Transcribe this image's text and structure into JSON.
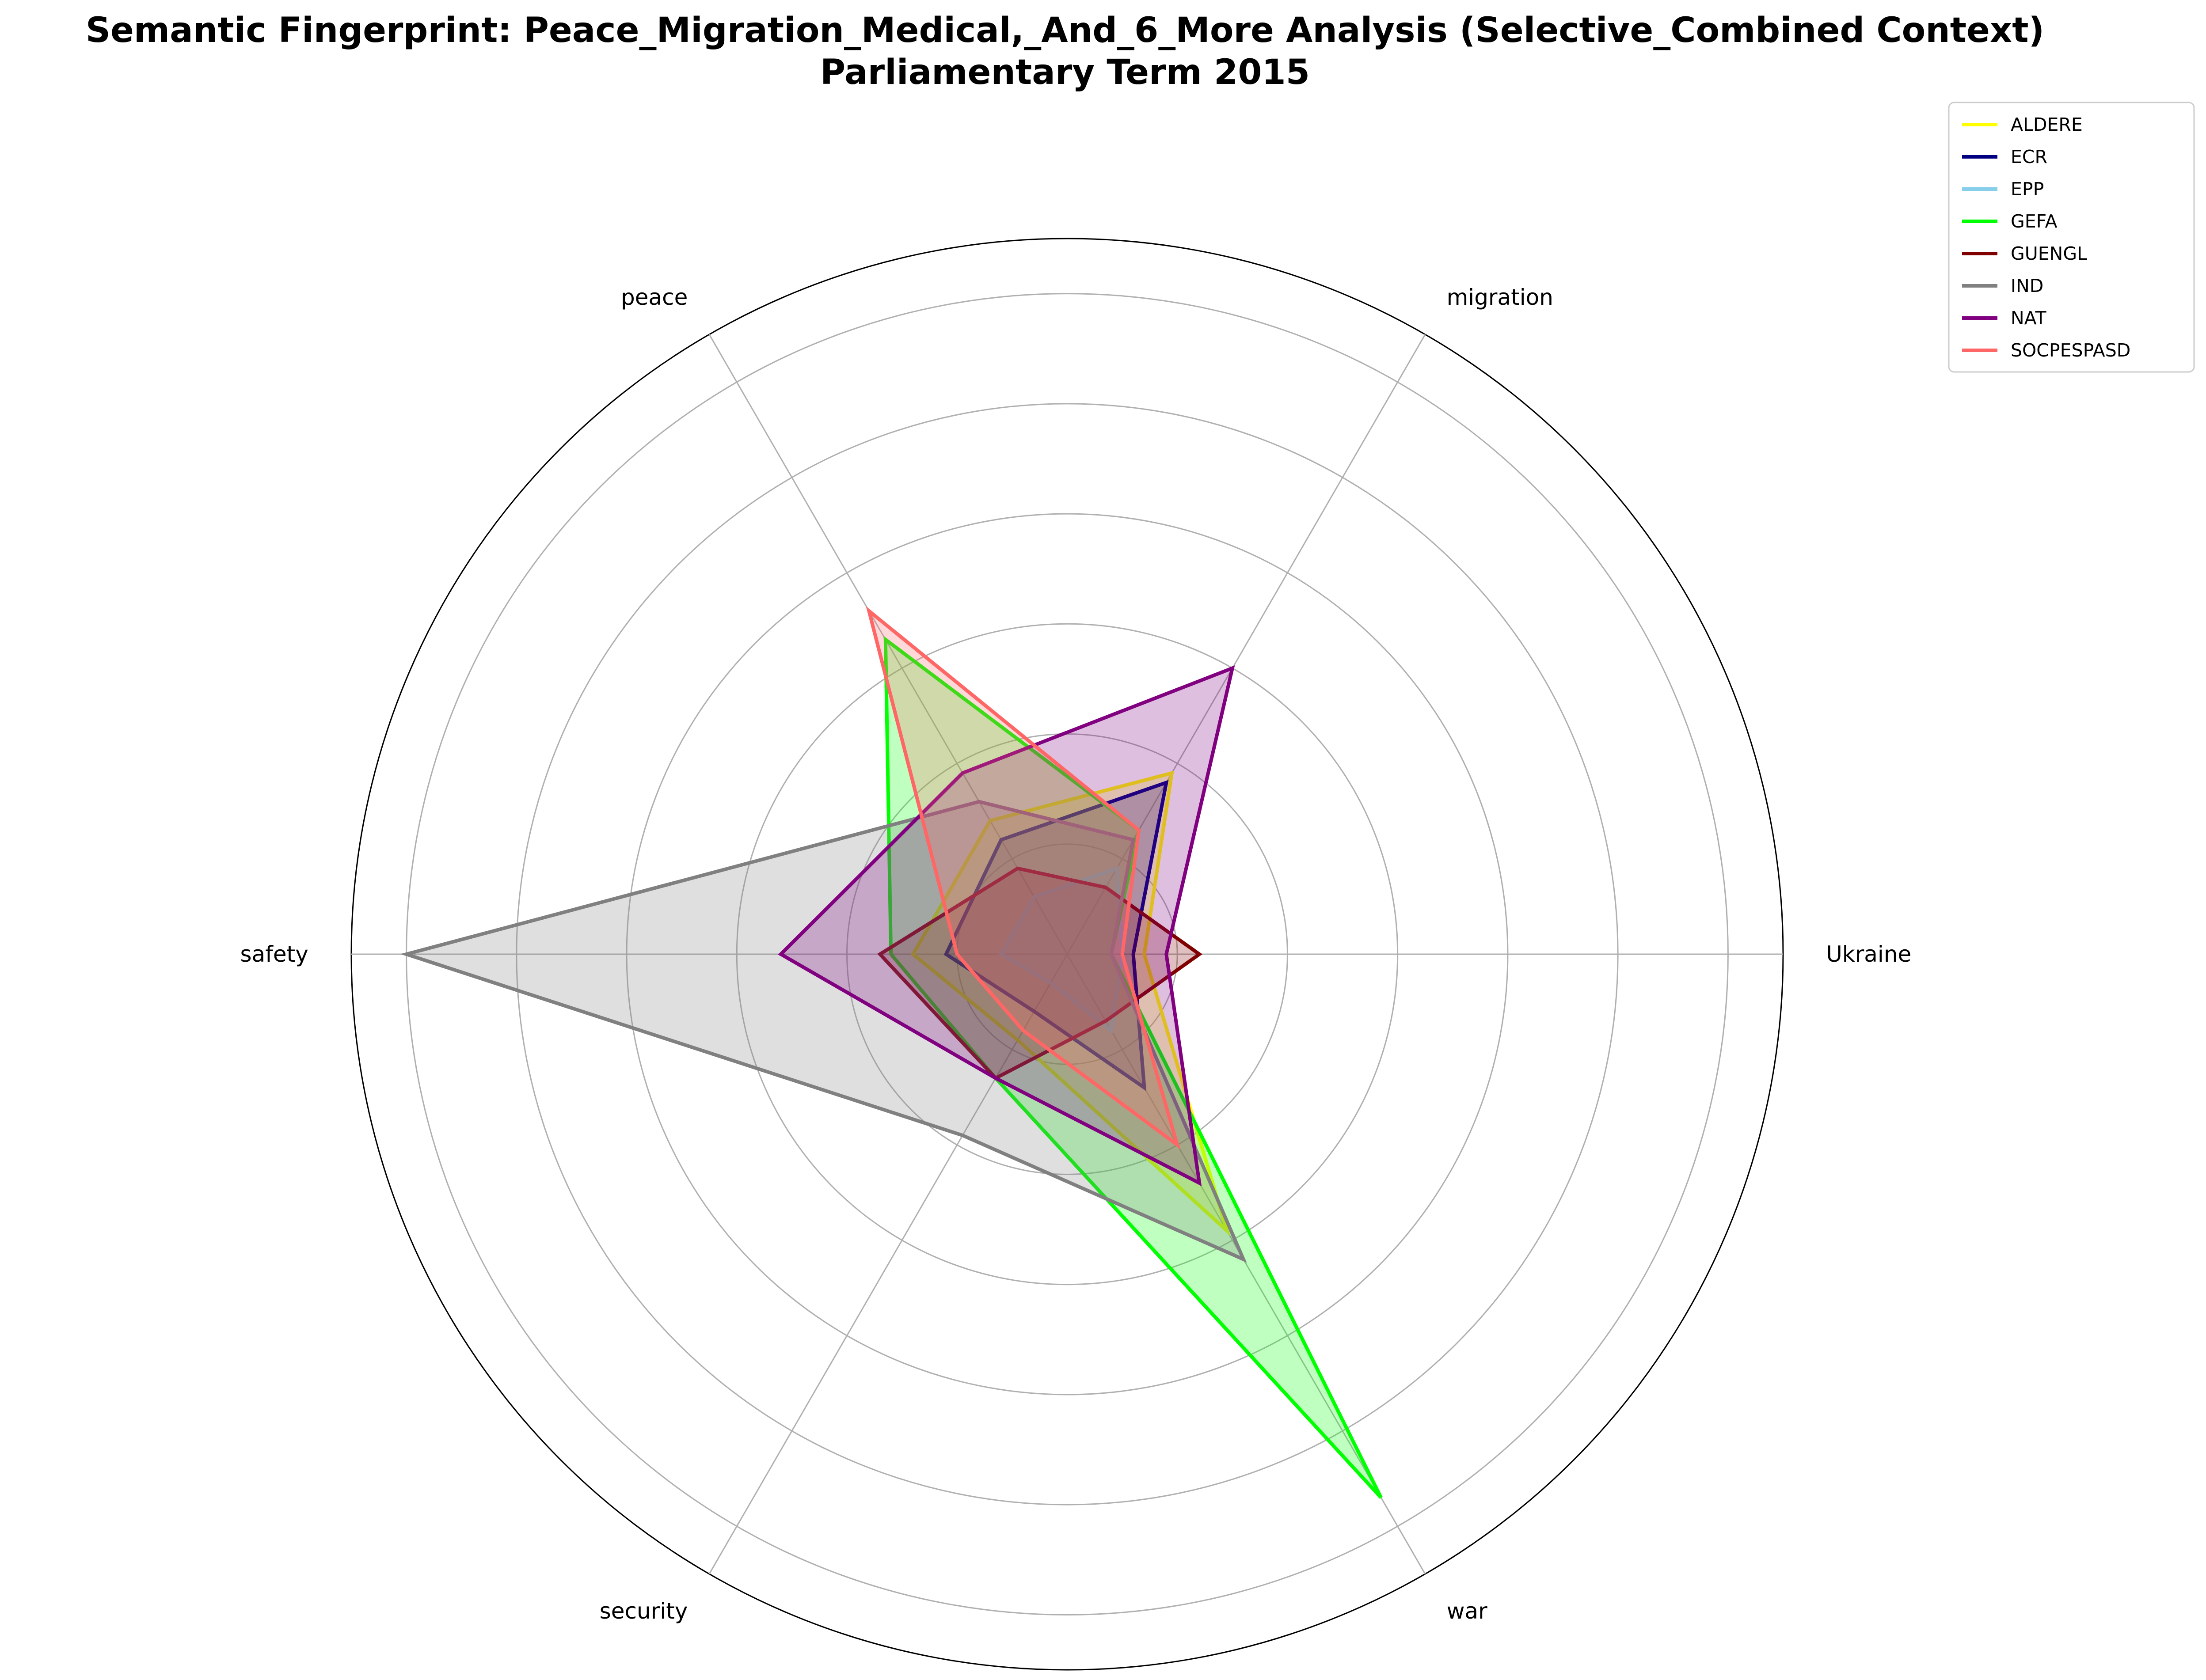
{
  "chart_data": {
    "type": "radar",
    "title": "Semantic Fingerprint: Peace_Migration_Medical,_And_6_More Analysis (Selective_Combined Context)",
    "subtitle": "Parliamentary Term 2015",
    "axes": [
      "Ukraine",
      "migration",
      "peace",
      "safety",
      "security",
      "war"
    ],
    "rlim": [
      0,
      6.5
    ],
    "grid": true,
    "legend_position": "top-right",
    "series": [
      {
        "name": "ALDERE",
        "color": "#ffff00",
        "values": [
          0.7,
          1.9,
          1.4,
          1.4,
          0.9,
          2.9
        ]
      },
      {
        "name": "ECR",
        "color": "#000080",
        "values": [
          0.6,
          1.8,
          1.2,
          1.1,
          0.6,
          1.4
        ]
      },
      {
        "name": "EPP",
        "color": "#87ceeb",
        "values": [
          0.5,
          0.9,
          0.6,
          0.6,
          0.3,
          0.8
        ]
      },
      {
        "name": "GEFA",
        "color": "#00ff00",
        "values": [
          0.4,
          1.3,
          3.3,
          1.6,
          1.3,
          5.7
        ]
      },
      {
        "name": "GUENGL",
        "color": "#800000",
        "values": [
          1.2,
          0.7,
          0.9,
          1.7,
          1.3,
          0.7
        ]
      },
      {
        "name": "IND",
        "color": "#808080",
        "values": [
          0.4,
          1.2,
          1.6,
          6.0,
          1.9,
          3.2
        ]
      },
      {
        "name": "NAT",
        "color": "#800080",
        "values": [
          0.9,
          3.0,
          1.9,
          2.6,
          1.3,
          2.4
        ]
      },
      {
        "name": "SOCPESPASD",
        "color": "#ff6666",
        "values": [
          0.5,
          1.3,
          3.6,
          1.0,
          0.8,
          2.0
        ]
      }
    ]
  }
}
